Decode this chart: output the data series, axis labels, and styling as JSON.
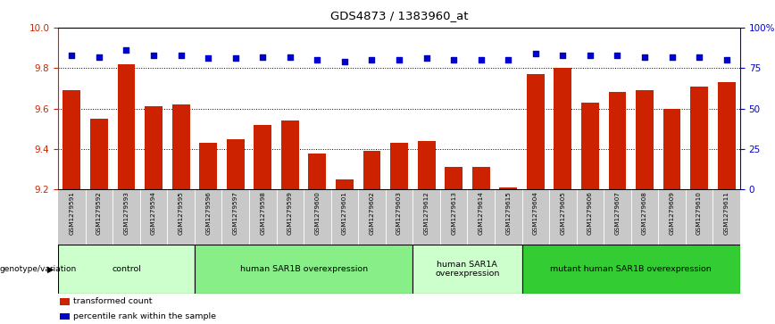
{
  "title": "GDS4873 / 1383960_at",
  "samples": [
    "GSM1279591",
    "GSM1279592",
    "GSM1279593",
    "GSM1279594",
    "GSM1279595",
    "GSM1279596",
    "GSM1279597",
    "GSM1279598",
    "GSM1279599",
    "GSM1279600",
    "GSM1279601",
    "GSM1279602",
    "GSM1279603",
    "GSM1279612",
    "GSM1279613",
    "GSM1279614",
    "GSM1279615",
    "GSM1279604",
    "GSM1279605",
    "GSM1279606",
    "GSM1279607",
    "GSM1279608",
    "GSM1279609",
    "GSM1279610",
    "GSM1279611"
  ],
  "bar_values": [
    9.69,
    9.55,
    9.82,
    9.61,
    9.62,
    9.43,
    9.45,
    9.52,
    9.54,
    9.38,
    9.25,
    9.39,
    9.43,
    9.44,
    9.31,
    9.31,
    9.21,
    9.77,
    9.8,
    9.63,
    9.68,
    9.69,
    9.6,
    9.71,
    9.73
  ],
  "percentile_values": [
    83,
    82,
    86,
    83,
    83,
    81,
    81,
    82,
    82,
    80,
    79,
    80,
    80,
    81,
    80,
    80,
    80,
    84,
    83,
    83,
    83,
    82,
    82,
    82,
    80
  ],
  "bar_color": "#cc2200",
  "dot_color": "#0000cc",
  "ylim_left": [
    9.2,
    10.0
  ],
  "ylim_right": [
    0,
    100
  ],
  "yticks_left": [
    9.2,
    9.4,
    9.6,
    9.8,
    10.0
  ],
  "yticks_right": [
    0,
    25,
    50,
    75,
    100
  ],
  "ytick_labels_right": [
    "0",
    "25",
    "50",
    "75",
    "100%"
  ],
  "groups": [
    {
      "label": "control",
      "start": 0,
      "end": 5,
      "color": "#ccffcc"
    },
    {
      "label": "human SAR1B overexpression",
      "start": 5,
      "end": 13,
      "color": "#88ee88"
    },
    {
      "label": "human SAR1A\noverexpression",
      "start": 13,
      "end": 17,
      "color": "#ccffcc"
    },
    {
      "label": "mutant human SAR1B overexpression",
      "start": 17,
      "end": 25,
      "color": "#33cc33"
    }
  ],
  "genotype_label": "genotype/variation",
  "legend_items": [
    {
      "label": "transformed count",
      "color": "#cc2200"
    },
    {
      "label": "percentile rank within the sample",
      "color": "#0000cc"
    }
  ],
  "bar_width": 0.65,
  "background_color": "#ffffff",
  "tick_area_color": "#c8c8c8"
}
